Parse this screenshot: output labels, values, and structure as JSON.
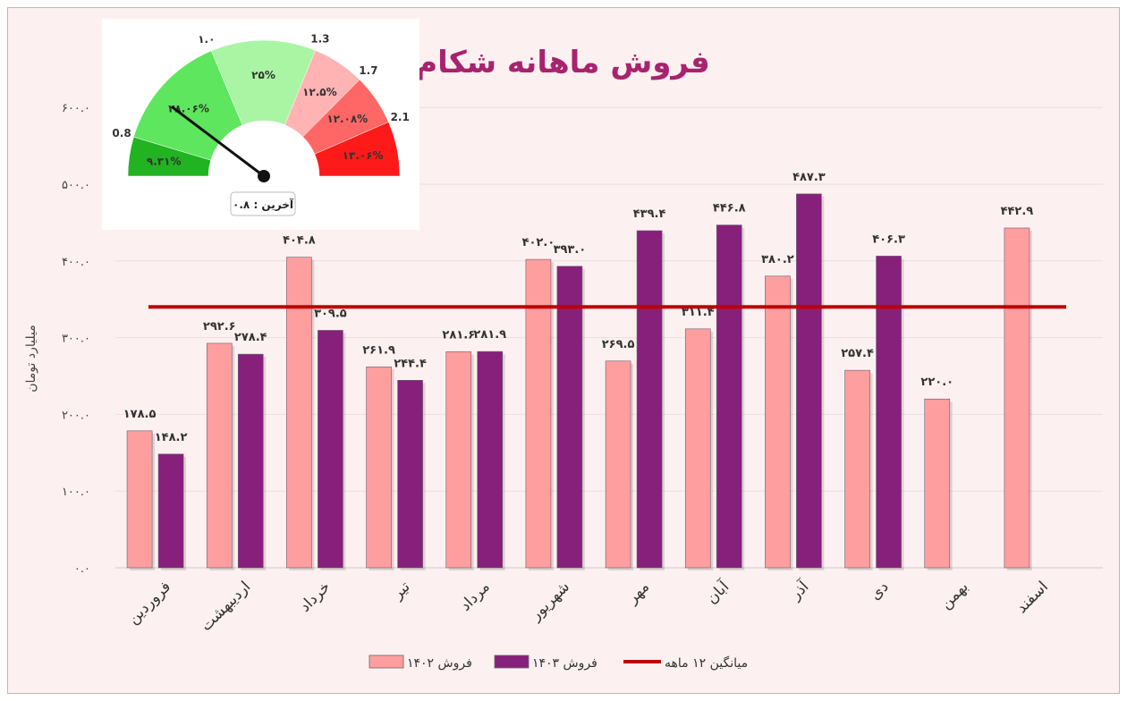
{
  "chart_data": {
    "type": "bar",
    "title": "فروش ماهانه شکام",
    "ylabel": "میلیارد تومان",
    "ylim": [
      0,
      600
    ],
    "yticks": [
      "۰.۰",
      "۱۰۰.۰",
      "۲۰۰.۰",
      "۳۰۰.۰",
      "۴۰۰.۰",
      "۵۰۰.۰",
      "۶۰۰.۰"
    ],
    "grid": true,
    "legend_position": "bottom",
    "categories": [
      "فروردین",
      "اردیبهشت",
      "خرداد",
      "تیر",
      "مرداد",
      "شهریور",
      "مهر",
      "آبان",
      "آذر",
      "دی",
      "بهمن",
      "اسفند"
    ],
    "series": [
      {
        "name": "فروش ۱۴۰۲",
        "color": "#ff9e9e",
        "values": [
          178.5,
          292.6,
          404.8,
          261.9,
          281.6,
          402.0,
          269.5,
          311.4,
          380.2,
          257.4,
          220.0,
          442.9
        ],
        "labels": [
          "۱۷۸.۵",
          "۲۹۲.۶",
          "۴۰۴.۸",
          "۲۶۱.۹",
          "۲۸۱.۶",
          "۴۰۲.۰",
          "۲۶۹.۵",
          "۳۱۱.۴",
          "۳۸۰.۲",
          "۲۵۷.۴",
          "۲۲۰.۰",
          "۴۴۲.۹"
        ]
      },
      {
        "name": "فروش ۱۴۰۳",
        "color": "#87207a",
        "values": [
          148.2,
          278.4,
          309.5,
          244.4,
          281.9,
          393.0,
          439.4,
          446.8,
          487.3,
          406.3,
          null,
          null
        ],
        "labels": [
          "۱۴۸.۲",
          "۲۷۸.۴",
          "۳۰۹.۵",
          "۲۴۴.۴",
          "۲۸۱.۹",
          "۳۹۳.۰",
          "۴۳۹.۴",
          "۴۴۶.۸",
          "۴۸۷.۳",
          "۴۰۶.۳",
          null,
          null
        ]
      }
    ],
    "average_line": {
      "name": "میانگین ۱۲ ماهه",
      "value": 340,
      "color": "#c00000"
    }
  },
  "gauge": {
    "segments": [
      {
        "label": "۹.۳۱%",
        "color": "#22b322"
      },
      {
        "label": "۲۸.۰۶%",
        "color": "#5ee65e"
      },
      {
        "label": "۲۵%",
        "color": "#a9f5a4"
      },
      {
        "label": "۱۲.۵%",
        "color": "#ffb3b3"
      },
      {
        "label": "۱۲.۰۸%",
        "color": "#ff6666"
      },
      {
        "label": "۱۳.۰۶%",
        "color": "#ff1a1a"
      }
    ],
    "shares": [
      9.31,
      28.06,
      25,
      12.5,
      12.08,
      13.06
    ],
    "ticks": [
      "0.8",
      "۱.۰",
      "1.3",
      "1.7",
      "2.1"
    ],
    "needle_value": 0.8,
    "last_label": "آخرین : ۰.۸"
  }
}
